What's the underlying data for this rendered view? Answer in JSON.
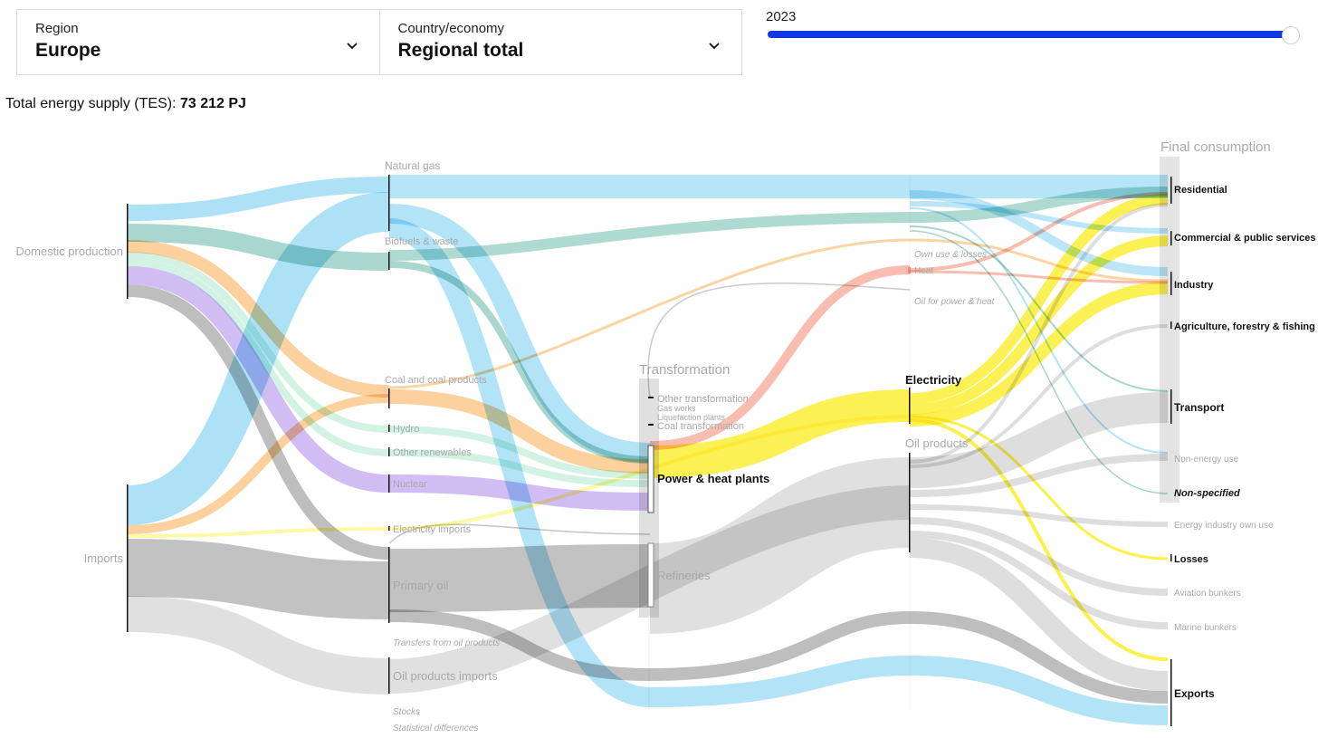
{
  "filters": {
    "region": {
      "label": "Region",
      "value": "Europe"
    },
    "country": {
      "label": "Country/economy",
      "value": "Regional total"
    }
  },
  "year": {
    "value": "2023",
    "slider_fraction": 1.0
  },
  "tes": {
    "prefix": "Total energy supply (TES): ",
    "value": "73 212 PJ"
  },
  "colors": {
    "natural_gas": "#9fdcf5",
    "biofuels": "#8ccabf",
    "coal": "#fbc98c",
    "nuclear": "#c9b1f2",
    "renewables": "#cdf2e0",
    "oil": "#a8a8a8",
    "oil_products": "#d6d6d6",
    "electricity": "#fcee36",
    "heat": "#f7a794",
    "elec_imports": "#fff79a"
  },
  "sankey": {
    "column_titles": {
      "transformation": "Transformation",
      "final": "Final consumption"
    },
    "sources": {
      "domestic": "Domestic production",
      "imports": "Imports"
    },
    "primary": {
      "natural_gas": "Natural gas",
      "biofuels": "Biofuels & waste",
      "coal": "Coal and coal products",
      "hydro": "Hydro",
      "other_renewables": "Other renewables",
      "nuclear": "Nuclear",
      "electricity_imports": "Electricity imports",
      "primary_oil": "Primary oil",
      "transfers": "Transfers from oil products",
      "oil_products_imports": "Oil products imports",
      "stocks": "Stocks",
      "statistical": "Statistical differences"
    },
    "transformation": {
      "other": "Other transformation",
      "gas_works": "Gas works",
      "liquefaction": "Liquefaction plants",
      "coal_transformation": "Coal transformation",
      "power_heat": "Power & heat plants",
      "refineries": "Refineries"
    },
    "secondary": {
      "own_use": "Own use & losses",
      "heat": "Heat",
      "oil_for_power": "Oil for power & heat",
      "electricity": "Electricity",
      "oil_products": "Oil products"
    },
    "final": {
      "residential": "Residential",
      "commercial": "Commercial & public services",
      "industry": "Industry",
      "agriculture": "Agriculture, forestry & fishing",
      "transport": "Transport",
      "non_energy": "Non-energy use",
      "non_specified": "Non-specified",
      "energy_industry": "Energy industry own use",
      "losses": "Losses",
      "aviation": "Aviation bunkers",
      "marine": "Marine bunkers",
      "exports": "Exports"
    }
  }
}
